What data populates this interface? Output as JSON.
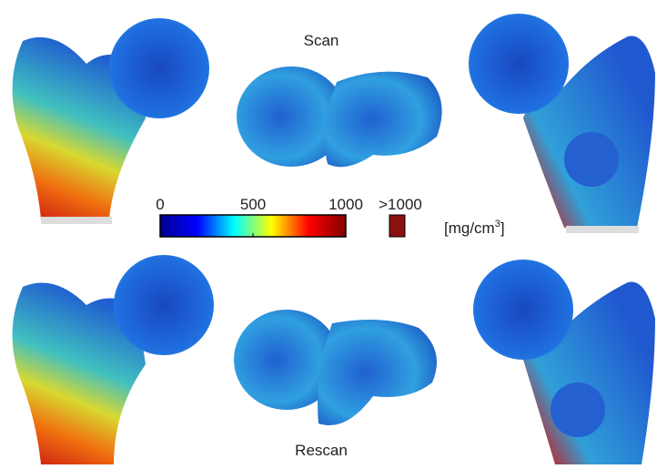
{
  "labels": {
    "top": "Scan",
    "bottom": "Rescan"
  },
  "colorbar": {
    "colormap": "jet",
    "lim": [
      0,
      1000
    ],
    "ticks": [
      0,
      500,
      1000
    ],
    "overflow_label": ">1000",
    "overflow_color": "#8b1010",
    "unit": [
      "[mg/cm",
      "3",
      "]"
    ]
  }
}
